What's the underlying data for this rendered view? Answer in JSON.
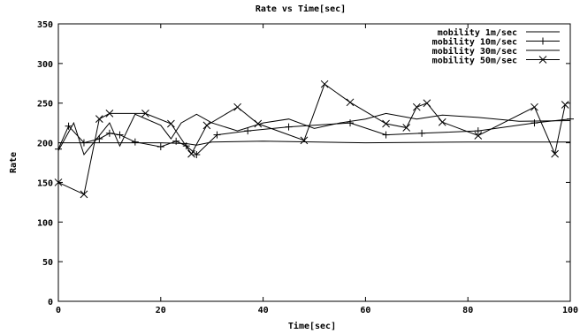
{
  "chart_data": {
    "type": "line",
    "title": "Rate vs Time[sec]",
    "xlabel": "Time[sec]",
    "ylabel": "Rate",
    "xlim": [
      0,
      100
    ],
    "ylim": [
      0,
      350
    ],
    "xticks": [
      0,
      20,
      40,
      60,
      80,
      100
    ],
    "yticks": [
      0,
      50,
      100,
      150,
      200,
      250,
      300,
      350
    ],
    "grid": false,
    "legend_position": "top-right",
    "series": [
      {
        "name": "mobility 1m/sec",
        "marker": "none",
        "x": [
          0,
          3,
          10,
          20,
          25,
          27,
          30,
          40,
          60,
          80,
          100
        ],
        "y": [
          200,
          200,
          200,
          200,
          199,
          197,
          201,
          202,
          200,
          201,
          201
        ]
      },
      {
        "name": "mobility 10m/sec",
        "marker": "plus",
        "x": [
          0,
          2,
          5,
          8,
          10,
          12,
          15,
          20,
          23,
          25,
          27,
          31,
          37,
          45,
          57,
          64,
          71,
          82,
          93,
          100
        ],
        "y": [
          192,
          221,
          200,
          205,
          212,
          210,
          201,
          195,
          202,
          196,
          185,
          210,
          215,
          220,
          225,
          210,
          212,
          215,
          225,
          230
        ]
      },
      {
        "name": "mobility 30m/sec",
        "marker": "none",
        "x": [
          0,
          3,
          5,
          10,
          12,
          15,
          20,
          22,
          24,
          27,
          30,
          35,
          40,
          45,
          50,
          55,
          60,
          64,
          70,
          75,
          82,
          90,
          100
        ],
        "y": [
          190,
          225,
          185,
          225,
          196,
          236,
          222,
          205,
          225,
          236,
          225,
          215,
          225,
          230,
          218,
          225,
          230,
          237,
          230,
          235,
          232,
          227,
          228
        ]
      },
      {
        "name": "mobility 50m/sec",
        "marker": "x",
        "x": [
          0,
          5,
          8,
          10,
          17,
          22,
          26,
          29,
          35,
          39,
          48,
          52,
          57,
          64,
          68,
          70,
          72,
          75,
          82,
          93,
          97,
          99
        ],
        "y": [
          150,
          135,
          230,
          237,
          237,
          224,
          186,
          222,
          245,
          224,
          203,
          274,
          251,
          224,
          219,
          245,
          250,
          226,
          209,
          245,
          186,
          248
        ]
      }
    ]
  }
}
